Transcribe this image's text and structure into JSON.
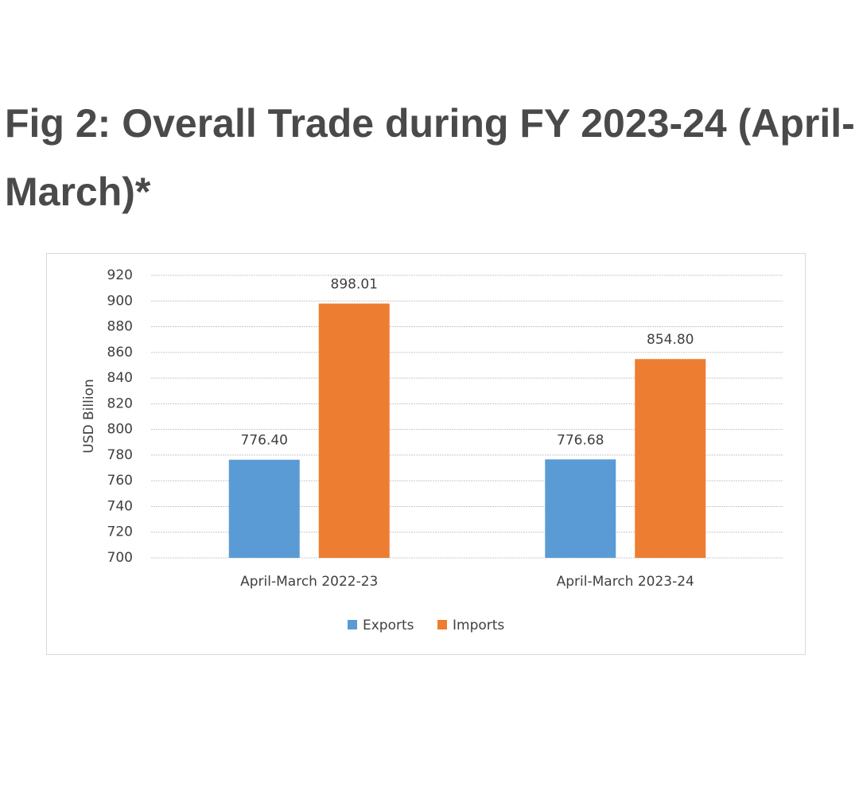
{
  "chart_data": {
    "type": "bar",
    "title": "Fig 2: Overall Trade during FY 2023-24 (April-March)*",
    "y_label": "USD Billion",
    "categories": [
      "April-March 2022-23",
      "April-March 2023-24"
    ],
    "series": [
      {
        "name": "Exports",
        "color": "#5b9bd5",
        "values": [
          776.4,
          776.68
        ],
        "value_labels": [
          "776.40",
          "776.68"
        ]
      },
      {
        "name": "Imports",
        "color": "#ed7d31",
        "values": [
          898.01,
          854.8
        ],
        "value_labels": [
          "898.01",
          "854.80"
        ]
      }
    ],
    "ylim": [
      700,
      920
    ],
    "yticks": [
      700,
      720,
      740,
      760,
      780,
      800,
      820,
      840,
      860,
      880,
      900,
      920
    ],
    "grid": true,
    "legend": "bottom"
  }
}
